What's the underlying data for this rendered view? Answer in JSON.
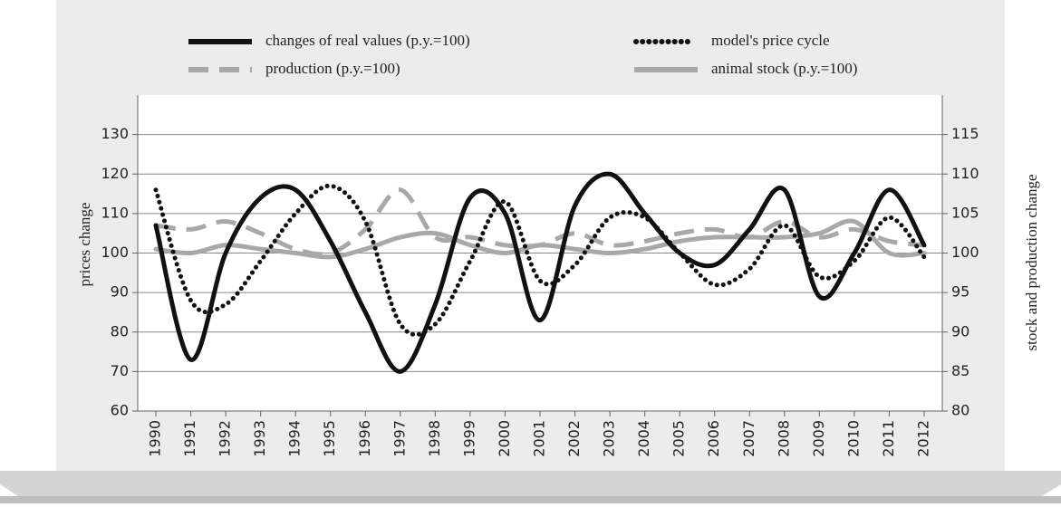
{
  "chart_data": {
    "type": "line",
    "xlabel": null,
    "ylabel": "prices change",
    "y2label": "stock and production change",
    "categories": [
      "1990",
      "1991",
      "1992",
      "1993",
      "1994",
      "1995",
      "1996",
      "1997",
      "1998",
      "1999",
      "2000",
      "2001",
      "2002",
      "2003",
      "2004",
      "2005",
      "2006",
      "2007",
      "2008",
      "2009",
      "2010",
      "2011",
      "2012"
    ],
    "ylim": [
      60,
      140
    ],
    "yticks": [
      60,
      70,
      80,
      90,
      100,
      110,
      120,
      130
    ],
    "y2lim": [
      80,
      120
    ],
    "y2ticks": [
      80,
      85,
      90,
      95,
      100,
      105,
      110,
      115
    ],
    "grid": true,
    "series": [
      {
        "name": "changes of real values (p.y.=100)",
        "color": "#111111",
        "style": "solid",
        "values": [
          107,
          73,
          100,
          114,
          116,
          103,
          85,
          70,
          87,
          114,
          110,
          83,
          112,
          120,
          110,
          100,
          97,
          106,
          116,
          89,
          100,
          116,
          102
        ]
      },
      {
        "name": "model's price cycle",
        "color": "#111111",
        "style": "dotted",
        "values": [
          116,
          88,
          87,
          98,
          110,
          117,
          108,
          82,
          82,
          98,
          113,
          93,
          97,
          109,
          109,
          100,
          92,
          96,
          107,
          94,
          98,
          109,
          99
        ]
      },
      {
        "name": "production (p.y.=100)",
        "color": "#a8a8a8",
        "style": "dashed",
        "axis": "y2",
        "values": [
          103.5,
          103,
          104,
          102.5,
          100.5,
          100,
          103,
          108,
          102,
          102,
          101,
          101,
          102.5,
          101,
          101.5,
          102.5,
          103,
          102,
          104,
          102,
          103,
          101.5,
          101
        ]
      },
      {
        "name": "animal stock (p.y.=100)",
        "color": "#a8a8a8",
        "style": "solid",
        "axis": "y2",
        "values": [
          100.5,
          100,
          101,
          100.5,
          100,
          99.5,
          100.5,
          102,
          102.5,
          101,
          100,
          101,
          100.5,
          100,
          100.5,
          101.5,
          102,
          102,
          102,
          102.5,
          104,
          100,
          100
        ]
      }
    ]
  }
}
